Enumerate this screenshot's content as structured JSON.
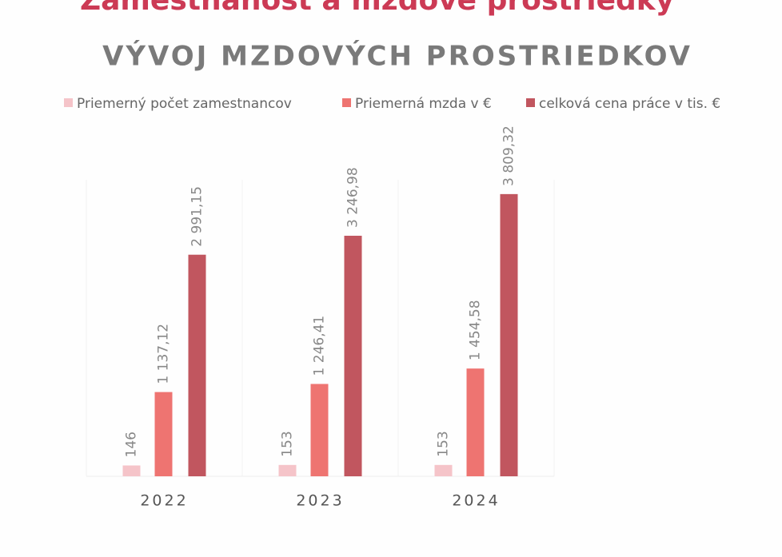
{
  "page_heading": "Zamestnanosť a mzdové prostriedky",
  "chart_data": {
    "type": "bar",
    "title": "VÝVOJ MZDOVÝCH PROSTRIEDKOV",
    "categories": [
      "2022",
      "2023",
      "2024"
    ],
    "series": [
      {
        "name": "Priemerný počet zamestnancov",
        "color": "#f5c4c9",
        "values": [
          146,
          153,
          153
        ]
      },
      {
        "name": "Priemerná mzda v €",
        "color": "#ee7471",
        "values": [
          1137.12,
          1246.41,
          1454.58
        ],
        "value_labels": [
          "1 137,12",
          "1 246,41",
          "1 454,58"
        ]
      },
      {
        "name": "celková cena práce v tis. €",
        "color": "#c1565f",
        "values": [
          2991.15,
          3246.98,
          3809.32
        ],
        "value_labels": [
          "2 991,15",
          "3 246,98",
          "3 809,32"
        ]
      }
    ],
    "legend": "top"
  }
}
